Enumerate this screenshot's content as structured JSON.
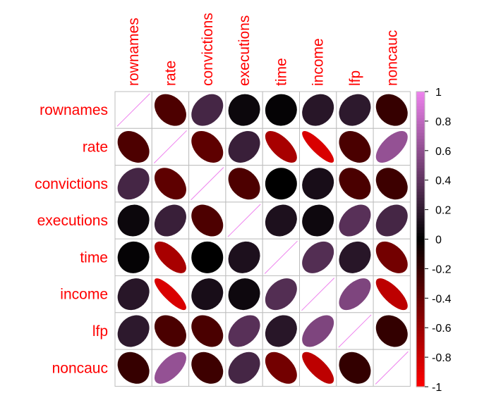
{
  "chart_data": {
    "type": "heatmap",
    "method": "ellipse",
    "layout": "full",
    "variables": [
      "rownames",
      "rate",
      "convictions",
      "executions",
      "time",
      "income",
      "lfp",
      "noncauc"
    ],
    "matrix": [
      [
        1.0,
        -0.3,
        0.29,
        0.05,
        0.02,
        0.17,
        0.19,
        -0.21
      ],
      [
        -0.3,
        1.0,
        -0.37,
        0.24,
        -0.66,
        -0.85,
        -0.29,
        0.62
      ],
      [
        0.29,
        -0.37,
        1.0,
        -0.3,
        0.0,
        0.1,
        -0.29,
        -0.24
      ],
      [
        0.05,
        0.24,
        -0.3,
        1.0,
        0.12,
        0.06,
        0.37,
        0.29
      ],
      [
        0.02,
        -0.66,
        0.0,
        0.12,
        1.0,
        0.35,
        0.17,
        -0.45
      ],
      [
        0.17,
        -0.85,
        0.1,
        0.06,
        0.35,
        1.0,
        0.53,
        -0.74
      ],
      [
        0.19,
        -0.29,
        -0.29,
        0.37,
        0.17,
        0.53,
        1.0,
        -0.2
      ],
      [
        -0.21,
        0.62,
        -0.24,
        0.29,
        -0.45,
        -0.74,
        -0.2,
        1.0
      ]
    ],
    "color_scale": {
      "min": -1,
      "max": 1,
      "stops": [
        {
          "value": -1,
          "color": "#ff0000"
        },
        {
          "value": 0,
          "color": "#000000"
        },
        {
          "value": 1,
          "color": "#ee82ee"
        }
      ],
      "ticks": [
        "1",
        "0.8",
        "0.6",
        "0.4",
        "0.2",
        "0",
        "-0.2",
        "-0.4",
        "-0.6",
        "-0.8",
        "-1"
      ]
    },
    "label_color": "#ff0000",
    "grid_color": "#bebebe",
    "diagonal_line_color": "#ee82ee",
    "colorbar_position": "right",
    "title": "",
    "xlabel": "",
    "ylabel": ""
  }
}
